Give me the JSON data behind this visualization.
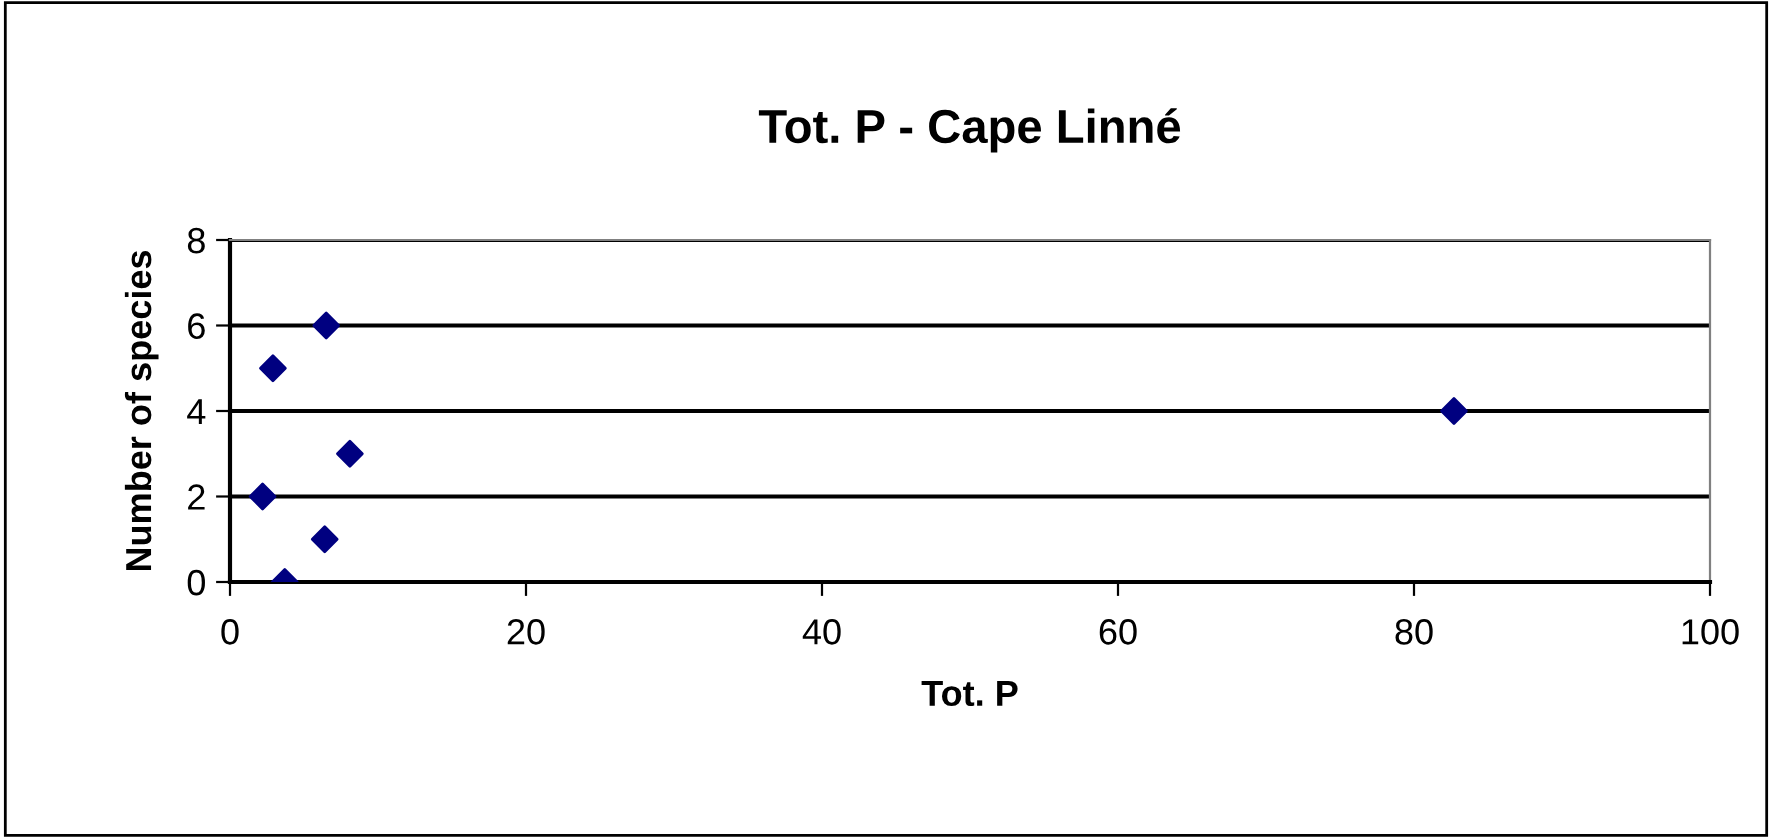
{
  "chart_data": {
    "type": "scatter",
    "title": "Tot. P - Cape Linné",
    "xlabel": "Tot. P",
    "ylabel": "Number of species",
    "x": [
      2.2,
      2.9,
      3.7,
      6.4,
      6.5,
      8.1,
      82.7
    ],
    "series": [
      {
        "color": "#000080",
        "values": [
          2,
          5,
          0,
          1,
          6,
          3,
          4
        ]
      }
    ],
    "xlim": [
      0,
      100
    ],
    "xticks": [
      0,
      20,
      40,
      60,
      80,
      100
    ],
    "ylim": [
      0,
      8
    ],
    "yticks": [
      0,
      2,
      4,
      6,
      8
    ],
    "grid": "y",
    "marker": "diamond",
    "legend": false
  }
}
